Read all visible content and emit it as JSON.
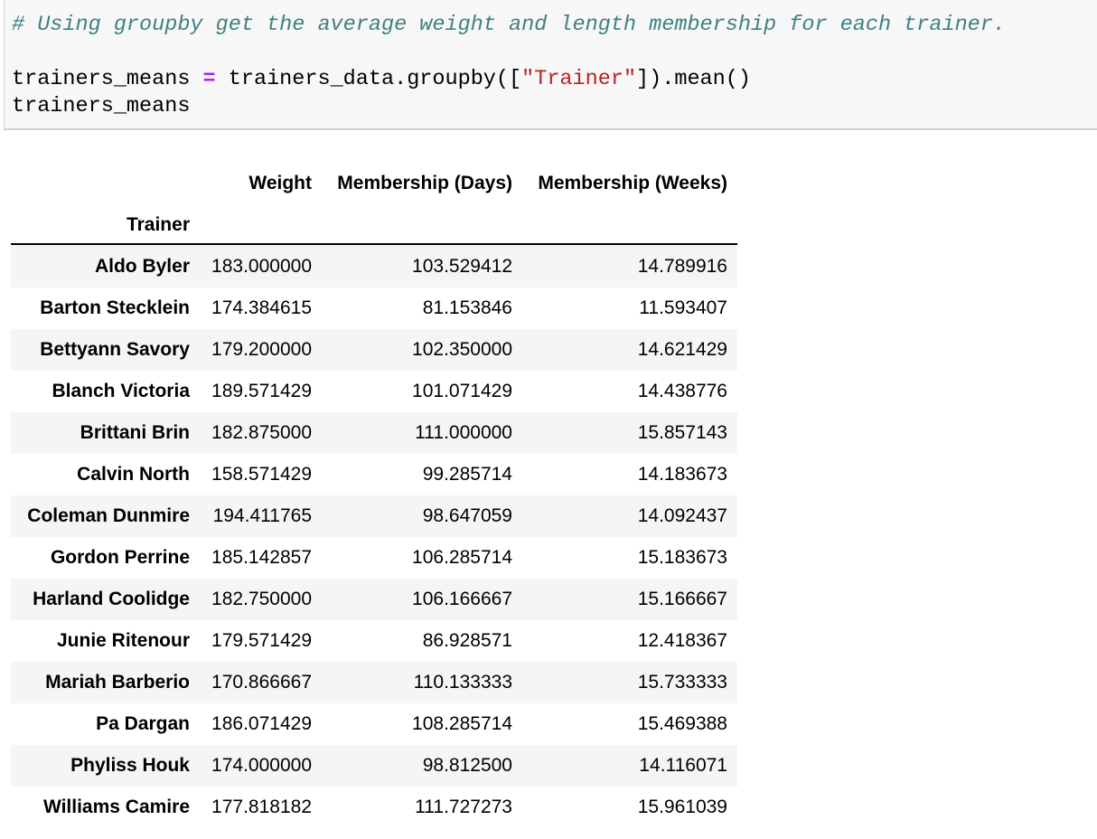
{
  "code_cell": {
    "comment": "# Using groupby get the average weight and length membership for each trainer.",
    "line2_var": "trainers_means ",
    "line2_op": "=",
    "line2_call_start": " trainers_data.groupby([",
    "line2_string": "\"Trainer\"",
    "line2_call_end": "]).mean()",
    "line3": "trainers_means"
  },
  "dataframe": {
    "columns": [
      "Weight",
      "Membership (Days)",
      "Membership (Weeks)"
    ],
    "index_name": "Trainer",
    "rows": [
      {
        "trainer": "Aldo Byler",
        "weight": "183.000000",
        "days": "103.529412",
        "weeks": "14.789916"
      },
      {
        "trainer": "Barton Stecklein",
        "weight": "174.384615",
        "days": "81.153846",
        "weeks": "11.593407"
      },
      {
        "trainer": "Bettyann Savory",
        "weight": "179.200000",
        "days": "102.350000",
        "weeks": "14.621429"
      },
      {
        "trainer": "Blanch Victoria",
        "weight": "189.571429",
        "days": "101.071429",
        "weeks": "14.438776"
      },
      {
        "trainer": "Brittani Brin",
        "weight": "182.875000",
        "days": "111.000000",
        "weeks": "15.857143"
      },
      {
        "trainer": "Calvin North",
        "weight": "158.571429",
        "days": "99.285714",
        "weeks": "14.183673"
      },
      {
        "trainer": "Coleman Dunmire",
        "weight": "194.411765",
        "days": "98.647059",
        "weeks": "14.092437"
      },
      {
        "trainer": "Gordon Perrine",
        "weight": "185.142857",
        "days": "106.285714",
        "weeks": "15.183673"
      },
      {
        "trainer": "Harland Coolidge",
        "weight": "182.750000",
        "days": "106.166667",
        "weeks": "15.166667"
      },
      {
        "trainer": "Junie Ritenour",
        "weight": "179.571429",
        "days": "86.928571",
        "weeks": "12.418367"
      },
      {
        "trainer": "Mariah Barberio",
        "weight": "170.866667",
        "days": "110.133333",
        "weeks": "15.733333"
      },
      {
        "trainer": "Pa Dargan",
        "weight": "186.071429",
        "days": "108.285714",
        "weeks": "15.469388"
      },
      {
        "trainer": "Phyliss Houk",
        "weight": "174.000000",
        "days": "98.812500",
        "weeks": "14.116071"
      },
      {
        "trainer": "Williams Camire",
        "weight": "177.818182",
        "days": "111.727273",
        "weeks": "15.961039"
      }
    ]
  },
  "colors": {
    "comment": "#408080",
    "operator": "#aa22ff",
    "string": "#ba2121",
    "cell_background": "#f7f7f7",
    "row_stripe": "#f5f5f5"
  }
}
